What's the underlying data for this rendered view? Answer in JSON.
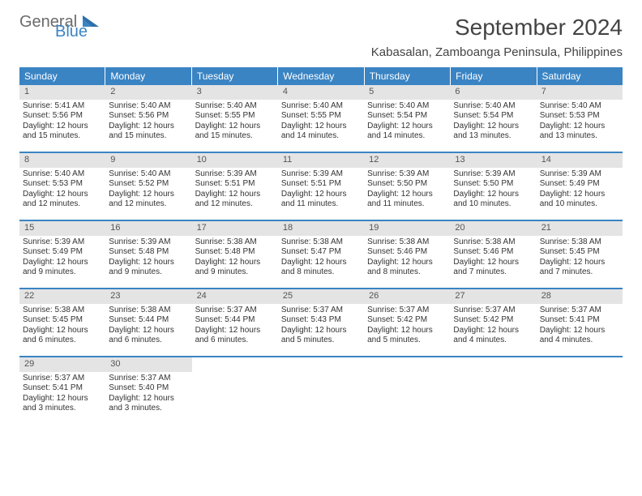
{
  "logo": {
    "part1": "General",
    "part2": "Blue"
  },
  "title": "September 2024",
  "location": "Kabasalan, Zamboanga Peninsula, Philippines",
  "colors": {
    "header_bg": "#3a84c4",
    "daynum_bg": "#e4e4e4",
    "text": "#333333",
    "logo_gray": "#6b6b6b",
    "logo_blue": "#3a84c4"
  },
  "day_headers": [
    "Sunday",
    "Monday",
    "Tuesday",
    "Wednesday",
    "Thursday",
    "Friday",
    "Saturday"
  ],
  "weeks": [
    [
      {
        "n": "1",
        "sr": "Sunrise: 5:41 AM",
        "ss": "Sunset: 5:56 PM",
        "d1": "Daylight: 12 hours",
        "d2": "and 15 minutes."
      },
      {
        "n": "2",
        "sr": "Sunrise: 5:40 AM",
        "ss": "Sunset: 5:56 PM",
        "d1": "Daylight: 12 hours",
        "d2": "and 15 minutes."
      },
      {
        "n": "3",
        "sr": "Sunrise: 5:40 AM",
        "ss": "Sunset: 5:55 PM",
        "d1": "Daylight: 12 hours",
        "d2": "and 15 minutes."
      },
      {
        "n": "4",
        "sr": "Sunrise: 5:40 AM",
        "ss": "Sunset: 5:55 PM",
        "d1": "Daylight: 12 hours",
        "d2": "and 14 minutes."
      },
      {
        "n": "5",
        "sr": "Sunrise: 5:40 AM",
        "ss": "Sunset: 5:54 PM",
        "d1": "Daylight: 12 hours",
        "d2": "and 14 minutes."
      },
      {
        "n": "6",
        "sr": "Sunrise: 5:40 AM",
        "ss": "Sunset: 5:54 PM",
        "d1": "Daylight: 12 hours",
        "d2": "and 13 minutes."
      },
      {
        "n": "7",
        "sr": "Sunrise: 5:40 AM",
        "ss": "Sunset: 5:53 PM",
        "d1": "Daylight: 12 hours",
        "d2": "and 13 minutes."
      }
    ],
    [
      {
        "n": "8",
        "sr": "Sunrise: 5:40 AM",
        "ss": "Sunset: 5:53 PM",
        "d1": "Daylight: 12 hours",
        "d2": "and 12 minutes."
      },
      {
        "n": "9",
        "sr": "Sunrise: 5:40 AM",
        "ss": "Sunset: 5:52 PM",
        "d1": "Daylight: 12 hours",
        "d2": "and 12 minutes."
      },
      {
        "n": "10",
        "sr": "Sunrise: 5:39 AM",
        "ss": "Sunset: 5:51 PM",
        "d1": "Daylight: 12 hours",
        "d2": "and 12 minutes."
      },
      {
        "n": "11",
        "sr": "Sunrise: 5:39 AM",
        "ss": "Sunset: 5:51 PM",
        "d1": "Daylight: 12 hours",
        "d2": "and 11 minutes."
      },
      {
        "n": "12",
        "sr": "Sunrise: 5:39 AM",
        "ss": "Sunset: 5:50 PM",
        "d1": "Daylight: 12 hours",
        "d2": "and 11 minutes."
      },
      {
        "n": "13",
        "sr": "Sunrise: 5:39 AM",
        "ss": "Sunset: 5:50 PM",
        "d1": "Daylight: 12 hours",
        "d2": "and 10 minutes."
      },
      {
        "n": "14",
        "sr": "Sunrise: 5:39 AM",
        "ss": "Sunset: 5:49 PM",
        "d1": "Daylight: 12 hours",
        "d2": "and 10 minutes."
      }
    ],
    [
      {
        "n": "15",
        "sr": "Sunrise: 5:39 AM",
        "ss": "Sunset: 5:49 PM",
        "d1": "Daylight: 12 hours",
        "d2": "and 9 minutes."
      },
      {
        "n": "16",
        "sr": "Sunrise: 5:39 AM",
        "ss": "Sunset: 5:48 PM",
        "d1": "Daylight: 12 hours",
        "d2": "and 9 minutes."
      },
      {
        "n": "17",
        "sr": "Sunrise: 5:38 AM",
        "ss": "Sunset: 5:48 PM",
        "d1": "Daylight: 12 hours",
        "d2": "and 9 minutes."
      },
      {
        "n": "18",
        "sr": "Sunrise: 5:38 AM",
        "ss": "Sunset: 5:47 PM",
        "d1": "Daylight: 12 hours",
        "d2": "and 8 minutes."
      },
      {
        "n": "19",
        "sr": "Sunrise: 5:38 AM",
        "ss": "Sunset: 5:46 PM",
        "d1": "Daylight: 12 hours",
        "d2": "and 8 minutes."
      },
      {
        "n": "20",
        "sr": "Sunrise: 5:38 AM",
        "ss": "Sunset: 5:46 PM",
        "d1": "Daylight: 12 hours",
        "d2": "and 7 minutes."
      },
      {
        "n": "21",
        "sr": "Sunrise: 5:38 AM",
        "ss": "Sunset: 5:45 PM",
        "d1": "Daylight: 12 hours",
        "d2": "and 7 minutes."
      }
    ],
    [
      {
        "n": "22",
        "sr": "Sunrise: 5:38 AM",
        "ss": "Sunset: 5:45 PM",
        "d1": "Daylight: 12 hours",
        "d2": "and 6 minutes."
      },
      {
        "n": "23",
        "sr": "Sunrise: 5:38 AM",
        "ss": "Sunset: 5:44 PM",
        "d1": "Daylight: 12 hours",
        "d2": "and 6 minutes."
      },
      {
        "n": "24",
        "sr": "Sunrise: 5:37 AM",
        "ss": "Sunset: 5:44 PM",
        "d1": "Daylight: 12 hours",
        "d2": "and 6 minutes."
      },
      {
        "n": "25",
        "sr": "Sunrise: 5:37 AM",
        "ss": "Sunset: 5:43 PM",
        "d1": "Daylight: 12 hours",
        "d2": "and 5 minutes."
      },
      {
        "n": "26",
        "sr": "Sunrise: 5:37 AM",
        "ss": "Sunset: 5:42 PM",
        "d1": "Daylight: 12 hours",
        "d2": "and 5 minutes."
      },
      {
        "n": "27",
        "sr": "Sunrise: 5:37 AM",
        "ss": "Sunset: 5:42 PM",
        "d1": "Daylight: 12 hours",
        "d2": "and 4 minutes."
      },
      {
        "n": "28",
        "sr": "Sunrise: 5:37 AM",
        "ss": "Sunset: 5:41 PM",
        "d1": "Daylight: 12 hours",
        "d2": "and 4 minutes."
      }
    ],
    [
      {
        "n": "29",
        "sr": "Sunrise: 5:37 AM",
        "ss": "Sunset: 5:41 PM",
        "d1": "Daylight: 12 hours",
        "d2": "and 3 minutes."
      },
      {
        "n": "30",
        "sr": "Sunrise: 5:37 AM",
        "ss": "Sunset: 5:40 PM",
        "d1": "Daylight: 12 hours",
        "d2": "and 3 minutes."
      },
      {
        "empty": true
      },
      {
        "empty": true
      },
      {
        "empty": true
      },
      {
        "empty": true
      },
      {
        "empty": true
      }
    ]
  ]
}
